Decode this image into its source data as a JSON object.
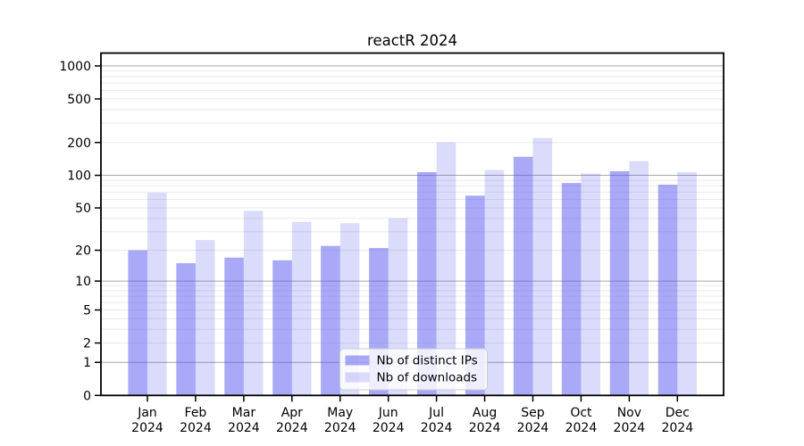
{
  "chart_data": {
    "type": "bar",
    "title": "reactR 2024",
    "categories": [
      "Jan",
      "Feb",
      "Mar",
      "Apr",
      "May",
      "Jun",
      "Jul",
      "Aug",
      "Sep",
      "Oct",
      "Nov",
      "Dec"
    ],
    "category_year": "2024",
    "series": [
      {
        "name": "Nb of distinct IPs",
        "color": "rgba(90,90,240,0.52)",
        "values": [
          20,
          15,
          17,
          16,
          22,
          21,
          107,
          65,
          148,
          85,
          109,
          82
        ]
      },
      {
        "name": "Nb of downloads",
        "color": "rgba(90,90,240,0.22)",
        "values": [
          69,
          25,
          47,
          37,
          36,
          40,
          200,
          112,
          220,
          104,
          135,
          107
        ]
      }
    ],
    "xlabel": "",
    "ylabel": "",
    "y_axis": {
      "scale": "log1p",
      "ticks": [
        0,
        1,
        2,
        5,
        10,
        20,
        50,
        100,
        200,
        500,
        1000
      ],
      "ylim": [
        0,
        1310
      ]
    },
    "grid": "on",
    "legend_position": "lower center",
    "colors": {
      "major_grid": "#a6a6a6",
      "minor_grid": "#e9e9e9",
      "axis": "#000000",
      "legend_border": "#cccccc",
      "legend_bg": "rgba(255,255,255,0.8)"
    }
  }
}
